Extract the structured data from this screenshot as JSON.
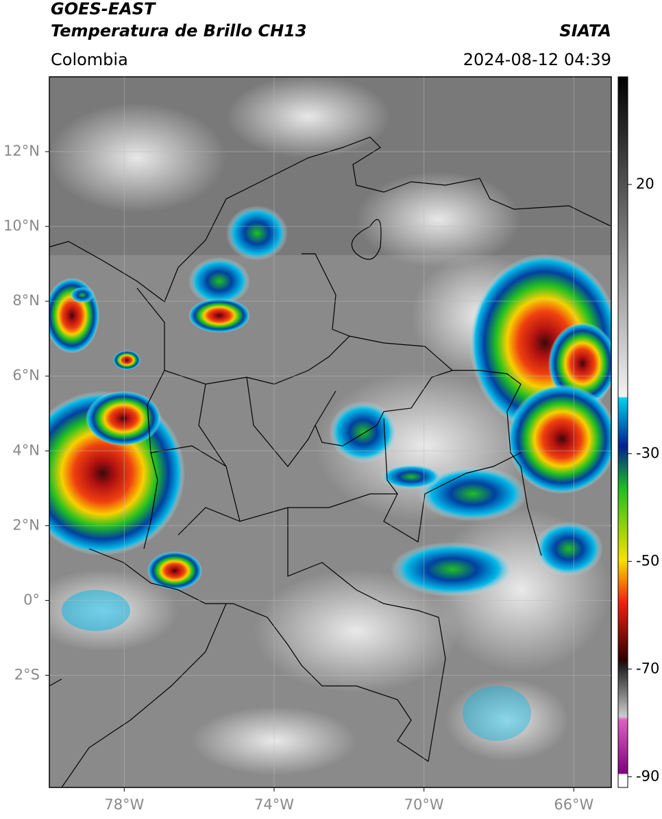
{
  "map": {
    "title": "GOES-EAST",
    "subtitle": "Temperatura de Brillo CH13",
    "source": "SIATA",
    "region": "Colombia",
    "datetime": "2024-08-12 04:39",
    "xlim": [
      -80,
      -65
    ],
    "ylim": [
      -5,
      14
    ],
    "xticks": [
      {
        "value": -78,
        "label": "78°W"
      },
      {
        "value": -74,
        "label": "74°W"
      },
      {
        "value": -70,
        "label": "70°W"
      },
      {
        "value": -66,
        "label": "66°W"
      }
    ],
    "yticks": [
      {
        "value": 12,
        "label": "12°N"
      },
      {
        "value": 10,
        "label": "10°N"
      },
      {
        "value": 8,
        "label": "8°N"
      },
      {
        "value": 6,
        "label": "6°N"
      },
      {
        "value": 4,
        "label": "4°N"
      },
      {
        "value": 2,
        "label": "2°N"
      },
      {
        "value": 0,
        "label": "0°"
      },
      {
        "value": -2,
        "label": "2°S"
      }
    ],
    "colorbar": {
      "lim": [
        -92,
        40
      ],
      "ticks": [
        20,
        -30,
        -50,
        -70,
        -90
      ]
    }
  }
}
